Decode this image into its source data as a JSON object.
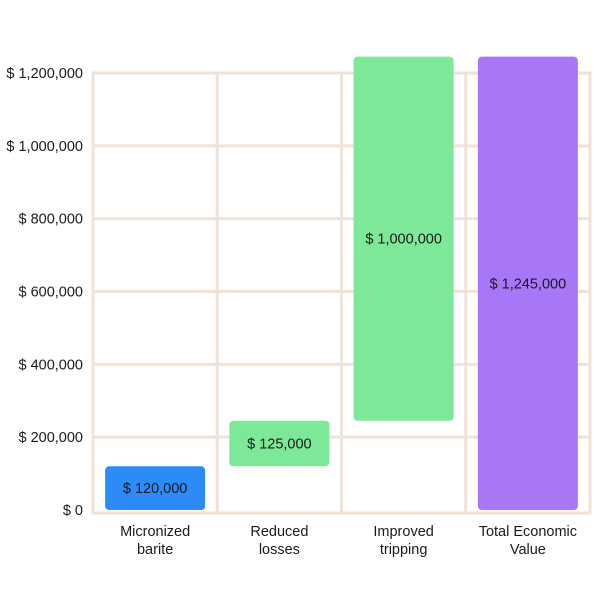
{
  "chart_data": {
    "type": "bar",
    "subtype": "waterfall",
    "title": "",
    "xlabel": "",
    "ylabel": "",
    "categories": [
      "Micronized\nbarite",
      "Reduced\nlosses",
      "Improved\ntripping",
      "Total Economic\nValue"
    ],
    "bars": [
      {
        "category": "Micronized\nbarite",
        "base": 0,
        "value": 120000,
        "label": "$ 120,000",
        "color": "#2b8cf7"
      },
      {
        "category": "Reduced\nlosses",
        "base": 120000,
        "value": 125000,
        "label": "$ 125,000",
        "color": "#7ce898"
      },
      {
        "category": "Improved\ntripping",
        "base": 245000,
        "value": 1000000,
        "label": "$ 1,000,000",
        "color": "#7ce898"
      },
      {
        "category": "Total Economic\nValue",
        "base": 0,
        "value": 1245000,
        "label": "$ 1,245,000",
        "color": "#a877f7"
      }
    ],
    "ylim": [
      0,
      1200000
    ],
    "yticks": [
      0,
      200000,
      400000,
      600000,
      800000,
      1000000,
      1200000
    ],
    "ytick_labels": [
      "$ 0",
      "$ 200,000",
      "$ 400,000",
      "$ 600,000",
      "$ 800,000",
      "$ 1,000,000",
      "$ 1,200,000"
    ],
    "grid": true,
    "grid_color": "#f0e2d6",
    "legend": "none"
  }
}
